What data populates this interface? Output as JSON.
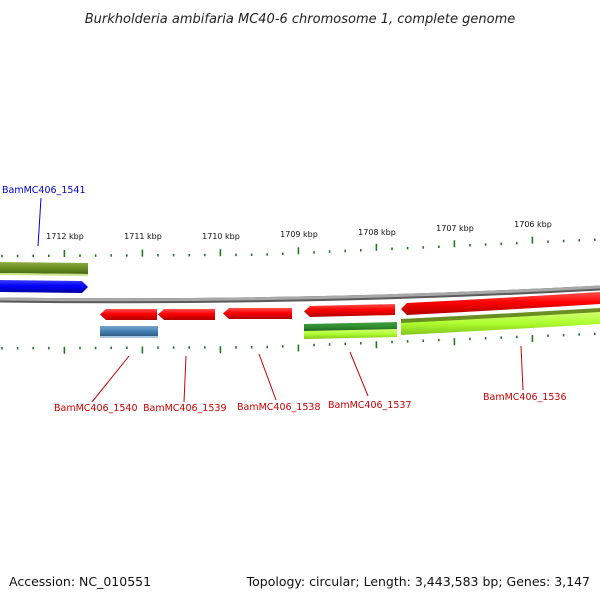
{
  "title": "Burkholderia ambifaria MC40-6 chromosome 1, complete genome",
  "footer": {
    "accession": "Accession: NC_010551",
    "summary": "Topology: circular; Length: 3,443,583 bp; Genes: 3,147"
  },
  "scale_labels": [
    "1712 kbp",
    "1711 kbp",
    "1710 kbp",
    "1709 kbp",
    "1708 kbp",
    "1707 kbp",
    "1706 kbp"
  ],
  "genes": [
    {
      "label": "BamMC406_1541",
      "color": "#0000cc"
    },
    {
      "label": "BamMC406_1540",
      "color": "#cc0000"
    },
    {
      "label": "BamMC406_1539",
      "color": "#cc0000"
    },
    {
      "label": "BamMC406_1538",
      "color": "#cc0000"
    },
    {
      "label": "BamMC406_1537",
      "color": "#cc0000"
    },
    {
      "label": "BamMC406_1536",
      "color": "#cc0000"
    }
  ],
  "colors": {
    "cds_forward": "#0000ff",
    "cds_reverse": "#ee0000",
    "olive_feature": "#6b8e23",
    "green_feature": "#2e8b2e",
    "lime_feature": "#adff2f",
    "steelblue_feature": "#4682b4",
    "backbone": "#888888",
    "ticks": "#1f7a1f"
  }
}
